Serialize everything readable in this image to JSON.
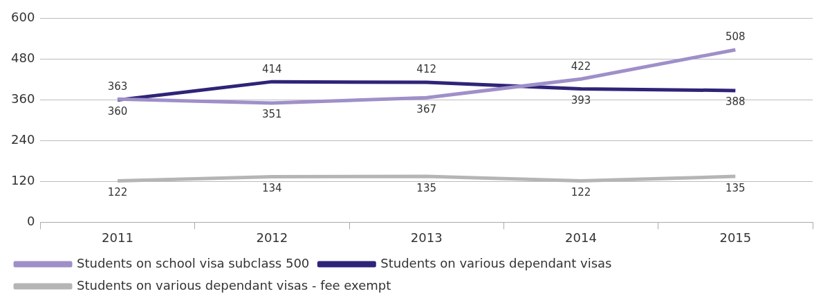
{
  "chart_data": {
    "type": "line",
    "categories": [
      "2011",
      "2012",
      "2013",
      "2014",
      "2015"
    ],
    "series": [
      {
        "name": "Students on school visa subclass 500",
        "color": "#9f8fc9",
        "values": [
          363,
          351,
          367,
          422,
          508
        ]
      },
      {
        "name": "Students on various dependant visas",
        "color": "#2e2478",
        "values": [
          360,
          414,
          412,
          393,
          388
        ]
      },
      {
        "name": "Students on various dependant visas - fee exempt",
        "color": "#b5b5b5",
        "values": [
          122,
          134,
          135,
          122,
          135
        ]
      }
    ],
    "ylim": [
      0,
      600
    ],
    "yticks": [
      0,
      120,
      240,
      360,
      480,
      600
    ],
    "grid": "y",
    "legend": "bottom",
    "data_labels": true,
    "marker": "none",
    "line_style": "solid"
  }
}
